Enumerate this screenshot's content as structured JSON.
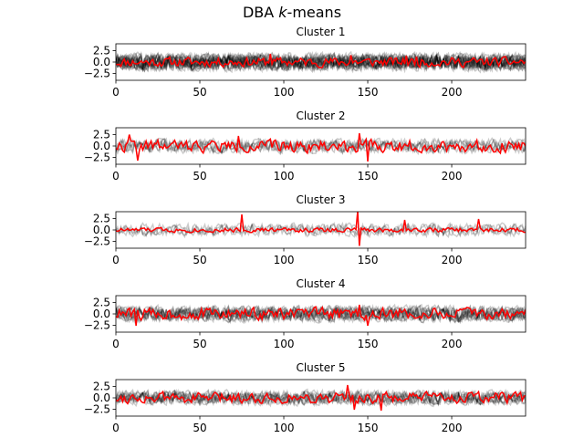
{
  "figure": {
    "title_text": "DBA ",
    "title_italic": "k",
    "title_suffix": "-means"
  },
  "colors": {
    "centroid": "#ff0000",
    "series": "#000000",
    "axes": "#000000",
    "background": "#ffffff"
  },
  "chart_data": [
    {
      "type": "line",
      "title": "Cluster 1",
      "xlim": [
        0,
        244
      ],
      "ylim": [
        -4.0,
        4.0
      ],
      "xticks": [
        0,
        50,
        100,
        150,
        200
      ],
      "yticks": [
        2.5,
        0.0,
        -2.5
      ],
      "xtick_labels": [
        "0",
        "50",
        "100",
        "150",
        "200"
      ],
      "ytick_labels": [
        "2.5",
        "0.0",
        "−2.5"
      ],
      "member_series_count": 20,
      "member_spread": 1.2,
      "centroid_amplitude": 0.7,
      "centroid_seed": 11,
      "centroid_spikes": [
        [
          92,
          1.8
        ],
        [
          140,
          1.5
        ],
        [
          173,
          1.4
        ],
        [
          179,
          1.2
        ]
      ]
    },
    {
      "type": "line",
      "title": "Cluster 2",
      "xlim": [
        0,
        244
      ],
      "ylim": [
        -4.0,
        4.0
      ],
      "xticks": [
        0,
        50,
        100,
        150,
        200
      ],
      "yticks": [
        2.5,
        0.0,
        -2.5
      ],
      "xtick_labels": [
        "0",
        "50",
        "100",
        "150",
        "200"
      ],
      "ytick_labels": [
        "2.5",
        "0.0",
        "−2.5"
      ],
      "member_series_count": 6,
      "member_spread": 1.0,
      "centroid_amplitude": 0.9,
      "centroid_seed": 22,
      "centroid_spikes": [
        [
          8,
          2.5
        ],
        [
          13,
          -3.2
        ],
        [
          73,
          2.2
        ],
        [
          145,
          2.8
        ],
        [
          150,
          -3.4
        ]
      ]
    },
    {
      "type": "line",
      "title": "Cluster 3",
      "xlim": [
        0,
        244
      ],
      "ylim": [
        -4.0,
        4.0
      ],
      "xticks": [
        0,
        50,
        100,
        150,
        200
      ],
      "yticks": [
        2.5,
        0.0,
        -2.5
      ],
      "xtick_labels": [
        "0",
        "50",
        "100",
        "150",
        "200"
      ],
      "ytick_labels": [
        "2.5",
        "0.0",
        "−2.5"
      ],
      "member_series_count": 4,
      "member_spread": 0.9,
      "centroid_amplitude": 0.35,
      "centroid_seed": 33,
      "centroid_spikes": [
        [
          75,
          3.4
        ],
        [
          144,
          4.2
        ],
        [
          145,
          -3.5
        ],
        [
          172,
          2.2
        ],
        [
          216,
          2.4
        ]
      ]
    },
    {
      "type": "line",
      "title": "Cluster 4",
      "xlim": [
        0,
        244
      ],
      "ylim": [
        -4.0,
        4.0
      ],
      "xticks": [
        0,
        50,
        100,
        150,
        200
      ],
      "yticks": [
        2.5,
        0.0,
        -2.5
      ],
      "xtick_labels": [
        "0",
        "50",
        "100",
        "150",
        "200"
      ],
      "ytick_labels": [
        "2.5",
        "0.0",
        "−2.5"
      ],
      "member_series_count": 12,
      "member_spread": 1.1,
      "centroid_amplitude": 0.9,
      "centroid_seed": 44,
      "centroid_spikes": [
        [
          12,
          -2.6
        ],
        [
          145,
          2.0
        ],
        [
          150,
          -2.6
        ]
      ]
    },
    {
      "type": "line",
      "title": "Cluster 5",
      "xlim": [
        0,
        244
      ],
      "ylim": [
        -4.0,
        4.0
      ],
      "xticks": [
        0,
        50,
        100,
        150,
        200
      ],
      "yticks": [
        2.5,
        0.0,
        -2.5
      ],
      "xtick_labels": [
        "0",
        "50",
        "100",
        "150",
        "200"
      ],
      "ytick_labels": [
        "2.5",
        "0.0",
        "−2.5"
      ],
      "member_series_count": 10,
      "member_spread": 1.0,
      "centroid_amplitude": 0.8,
      "centroid_seed": 55,
      "centroid_spikes": [
        [
          138,
          2.8
        ],
        [
          142,
          -2.6
        ],
        [
          158,
          -2.8
        ]
      ]
    }
  ]
}
